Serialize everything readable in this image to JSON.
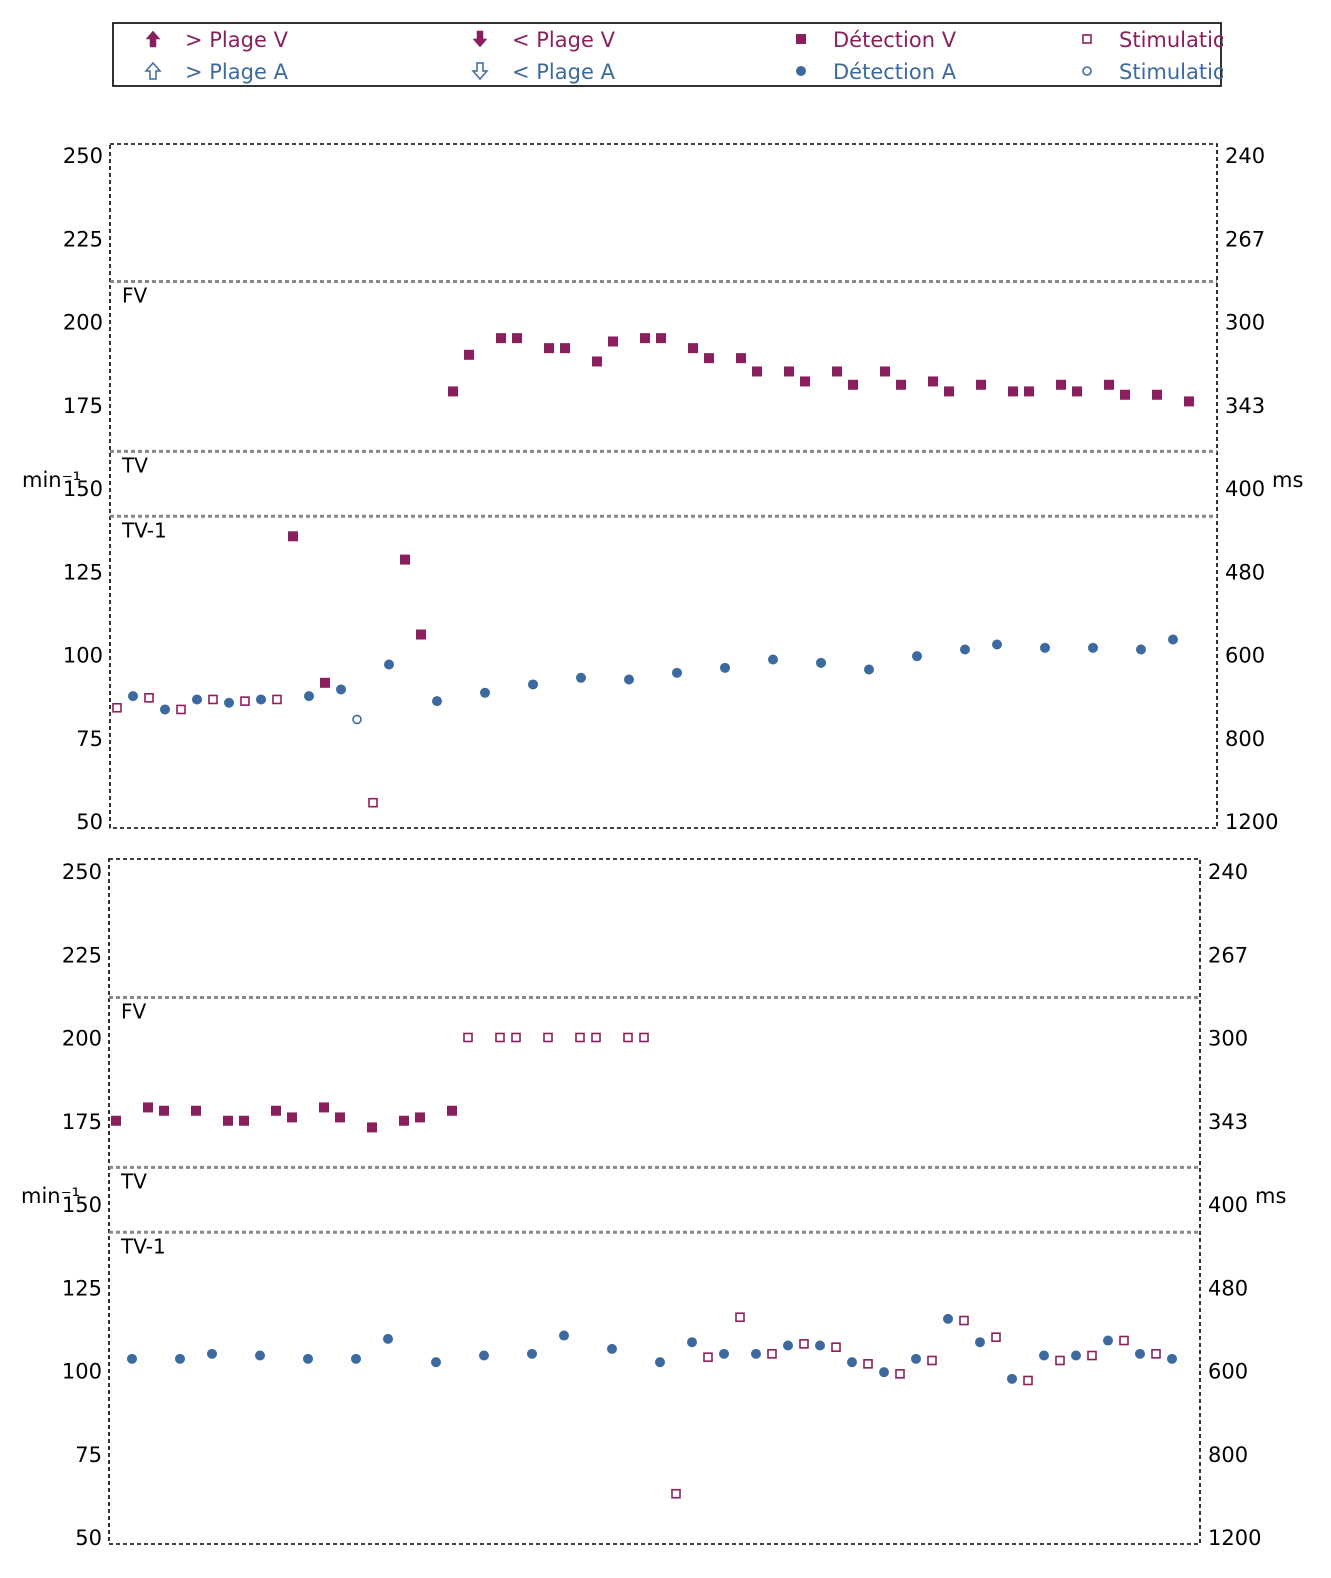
{
  "colors": {
    "ventricular": "#8b1f5e",
    "atrial": "#3d6a9e",
    "zone_line": "#888888",
    "frame": "#000000"
  },
  "legend": {
    "items": [
      {
        "symbol": "arrow-up-solid",
        "label": "> Plage V",
        "color": "#8b1f5e"
      },
      {
        "symbol": "arrow-down-solid",
        "label": "< Plage V",
        "color": "#8b1f5e"
      },
      {
        "symbol": "square-solid",
        "label": "Détection V",
        "color": "#8b1f5e"
      },
      {
        "symbol": "square-open",
        "label": "Stimulatio",
        "color": "#8b1f5e"
      },
      {
        "symbol": "arrow-up-open",
        "label": "> Plage A",
        "color": "#3d6a9e"
      },
      {
        "symbol": "arrow-down-open",
        "label": "< Plage A",
        "color": "#3d6a9e"
      },
      {
        "symbol": "circle-solid",
        "label": "Détection A",
        "color": "#3d6a9e"
      },
      {
        "symbol": "circle-open",
        "label": "Stimulatio",
        "color": "#3d6a9e"
      }
    ]
  },
  "chart_data": [
    {
      "type": "scatter",
      "ylabel": "min⁻¹",
      "y2label": "ms",
      "ylim": [
        50,
        250
      ],
      "yticks": [
        250,
        225,
        200,
        175,
        150,
        125,
        100,
        75,
        50
      ],
      "y2ticks": [
        "240",
        "267",
        "300",
        "343",
        "400",
        "480",
        "600",
        "800",
        "1200"
      ],
      "xlim": [
        0,
        68
      ],
      "zones": [
        {
          "label": "FV",
          "value": 212
        },
        {
          "label": "TV",
          "value": 161
        },
        {
          "label": "TV-1",
          "value": 141.5
        }
      ],
      "series": [
        {
          "name": "Détection V",
          "marker": "square-solid",
          "points": [
            [
              11,
              135.5
            ],
            [
              13,
              91.5
            ],
            [
              18,
              128.5
            ],
            [
              19,
              106
            ],
            [
              21,
              179
            ],
            [
              22,
              190
            ],
            [
              24,
              195
            ],
            [
              25,
              195
            ],
            [
              27,
              192
            ],
            [
              28,
              192
            ],
            [
              30,
              188
            ],
            [
              31,
              194
            ],
            [
              33,
              195
            ],
            [
              34,
              195
            ],
            [
              36,
              192
            ],
            [
              37,
              189
            ],
            [
              39,
              189
            ],
            [
              40,
              185
            ],
            [
              42,
              185
            ],
            [
              43,
              182
            ],
            [
              45,
              185
            ],
            [
              46,
              181
            ],
            [
              48,
              185
            ],
            [
              49,
              181
            ],
            [
              51,
              182
            ],
            [
              52,
              179
            ],
            [
              54,
              181
            ],
            [
              56,
              179
            ],
            [
              57,
              179
            ],
            [
              59,
              181
            ],
            [
              60,
              179
            ],
            [
              62,
              181
            ],
            [
              63,
              178
            ],
            [
              65,
              178
            ],
            [
              67,
              176
            ]
          ]
        },
        {
          "name": "Stimulatio",
          "marker": "square-open",
          "points": [
            [
              0,
              84
            ],
            [
              2,
              87
            ],
            [
              4,
              83.5
            ],
            [
              6,
              86.5
            ],
            [
              8,
              86
            ],
            [
              10,
              86.5
            ],
            [
              16,
              55.5
            ]
          ]
        },
        {
          "name": "Détection A",
          "marker": "circle-solid",
          "points": [
            [
              1,
              87.5
            ],
            [
              3,
              83.5
            ],
            [
              5,
              86.5
            ],
            [
              7,
              85.5
            ],
            [
              9,
              86.5
            ],
            [
              12,
              87.5
            ],
            [
              14,
              89.5
            ],
            [
              17,
              97
            ],
            [
              20,
              86
            ],
            [
              23,
              88.5
            ],
            [
              26,
              91
            ],
            [
              29,
              93
            ],
            [
              32,
              92.5
            ],
            [
              35,
              94.5
            ],
            [
              38,
              96
            ],
            [
              41,
              98.5
            ],
            [
              44,
              97.5
            ],
            [
              47,
              95.5
            ],
            [
              50,
              99.5
            ],
            [
              53,
              101.5
            ],
            [
              55,
              103
            ],
            [
              58,
              102
            ],
            [
              61,
              102
            ],
            [
              64,
              101.5
            ],
            [
              66,
              104.5
            ]
          ]
        },
        {
          "name": "Stimulatio",
          "marker": "circle-open",
          "points": [
            [
              15,
              80.5
            ]
          ]
        }
      ]
    },
    {
      "type": "scatter",
      "ylabel": "min⁻¹",
      "y2label": "ms",
      "ylim": [
        50,
        250
      ],
      "yticks": [
        250,
        225,
        200,
        175,
        150,
        125,
        100,
        75,
        50
      ],
      "y2ticks": [
        "240",
        "267",
        "300",
        "343",
        "400",
        "480",
        "600",
        "800",
        "1200"
      ],
      "xlim": [
        0,
        67
      ],
      "zones": [
        {
          "label": "FV",
          "value": 212
        },
        {
          "label": "TV",
          "value": 161
        },
        {
          "label": "TV-1",
          "value": 141.5
        }
      ],
      "series": [
        {
          "name": "Détection V",
          "marker": "square-solid",
          "points": [
            [
              0,
              175
            ],
            [
              2,
              179
            ],
            [
              3,
              178
            ],
            [
              5,
              178
            ],
            [
              7,
              175
            ],
            [
              8,
              175
            ],
            [
              10,
              178
            ],
            [
              11,
              176
            ],
            [
              13,
              179
            ],
            [
              14,
              176
            ],
            [
              16,
              173
            ],
            [
              18,
              175
            ],
            [
              19,
              176
            ],
            [
              21,
              178
            ]
          ]
        },
        {
          "name": "Stimulatio",
          "marker": "square-open",
          "points": [
            [
              22,
              200
            ],
            [
              24,
              200
            ],
            [
              25,
              200
            ],
            [
              27,
              200
            ],
            [
              29,
              200
            ],
            [
              30,
              200
            ],
            [
              32,
              200
            ],
            [
              33,
              200
            ],
            [
              35,
              63
            ],
            [
              37,
              104
            ],
            [
              39,
              116
            ],
            [
              41,
              105
            ],
            [
              43,
              108
            ],
            [
              45,
              107
            ],
            [
              47,
              102
            ],
            [
              49,
              99
            ],
            [
              51,
              103
            ],
            [
              53,
              115
            ],
            [
              55,
              110
            ],
            [
              57,
              97
            ],
            [
              59,
              103
            ],
            [
              61,
              104.5
            ],
            [
              63,
              109
            ],
            [
              65,
              105
            ]
          ]
        },
        {
          "name": "Détection A",
          "marker": "circle-solid",
          "points": [
            [
              1,
              103.5
            ],
            [
              4,
              103.5
            ],
            [
              6,
              105
            ],
            [
              9,
              104.5
            ],
            [
              12,
              103.5
            ],
            [
              15,
              103.5
            ],
            [
              17,
              109.5
            ],
            [
              20,
              102.5
            ],
            [
              23,
              104.5
            ],
            [
              26,
              105
            ],
            [
              28,
              110.5
            ],
            [
              31,
              106.5
            ],
            [
              34,
              102.5
            ],
            [
              36,
              108.5
            ],
            [
              38,
              105
            ],
            [
              40,
              105
            ],
            [
              42,
              107.5
            ],
            [
              44,
              107.5
            ],
            [
              46,
              102.5
            ],
            [
              48,
              99.5
            ],
            [
              50,
              103.5
            ],
            [
              52,
              115.5
            ],
            [
              54,
              108.5
            ],
            [
              56,
              97.5
            ],
            [
              58,
              104.5
            ],
            [
              60,
              104.5
            ],
            [
              62,
              109
            ],
            [
              64,
              105
            ],
            [
              66,
              103.5
            ]
          ]
        }
      ]
    }
  ]
}
